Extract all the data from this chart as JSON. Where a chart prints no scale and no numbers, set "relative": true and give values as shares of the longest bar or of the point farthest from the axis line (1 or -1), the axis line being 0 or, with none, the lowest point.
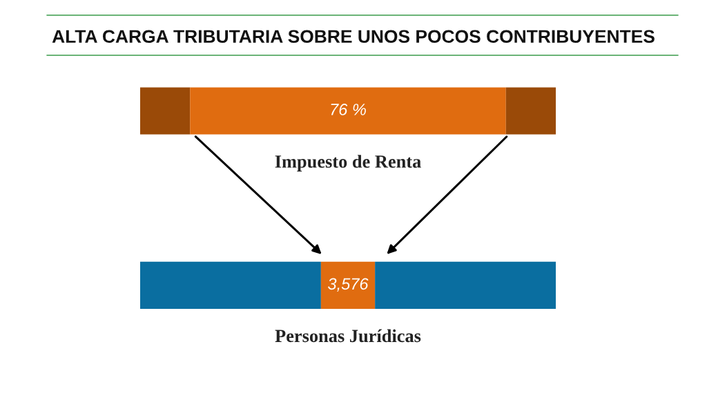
{
  "chart_data": {
    "type": "bar",
    "title": "ALTA CARGA TRIBUTARIA SOBRE UNOS POCOS CONTRIBUYENTES",
    "orientation": "horizontal",
    "stacked": true,
    "relative": true,
    "categories": [
      "Impuesto de Renta",
      "Personas Jurídicas"
    ],
    "series": [
      {
        "colors": [
          "#9a4a08",
          "#0a6ea0"
        ],
        "values": [
          0.12,
          0.435
        ]
      },
      {
        "colors": [
          "#e06c10",
          "#e06c10"
        ],
        "values": [
          0.76,
          0.13
        ]
      },
      {
        "colors": [
          "#9a4a08",
          "#0a6ea0"
        ],
        "values": [
          0.12,
          0.435
        ]
      }
    ],
    "annotations": [
      "76 %",
      "3,576"
    ]
  }
}
